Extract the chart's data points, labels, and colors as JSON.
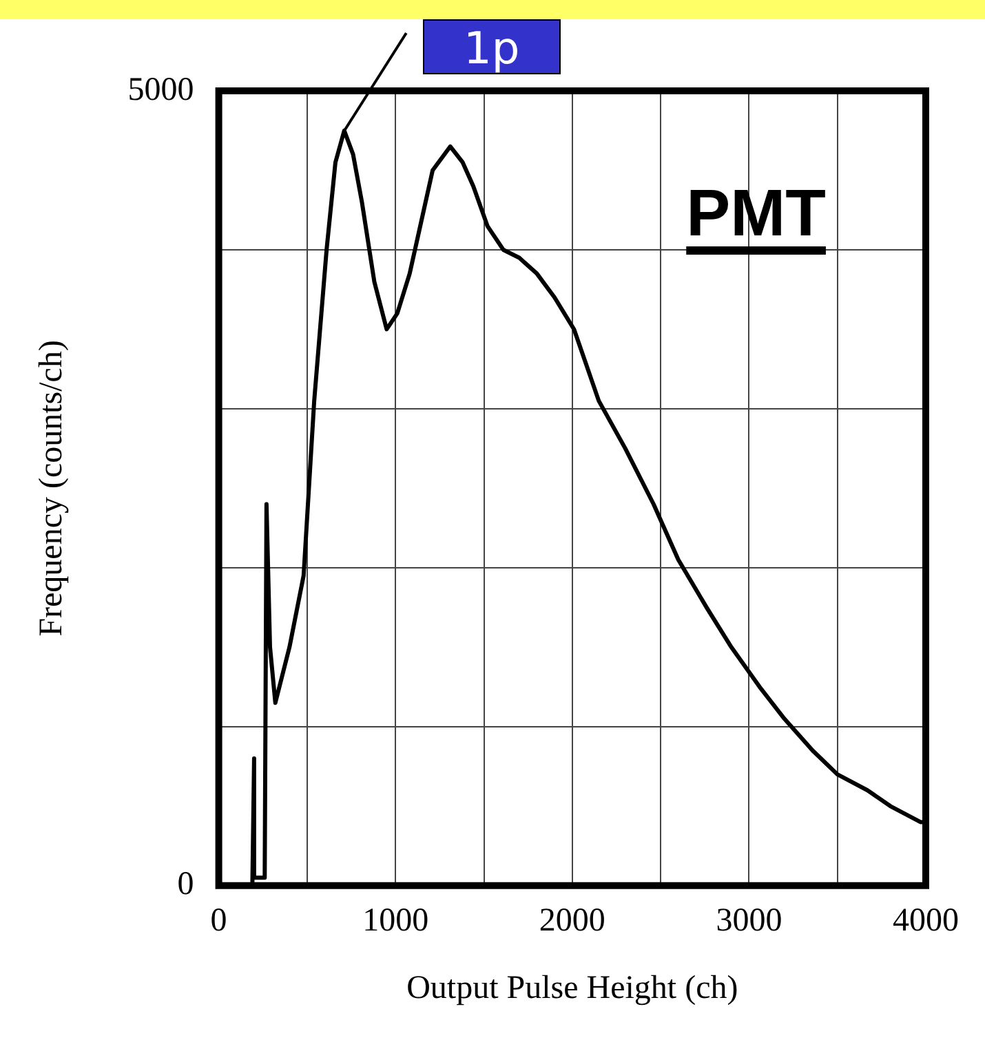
{
  "chart_data": {
    "type": "line",
    "xlabel": "Output Pulse Height (ch)",
    "ylabel": "Frequency (counts/ch)",
    "xlim": [
      0,
      4000
    ],
    "ylim": [
      0,
      5000
    ],
    "xticks": [
      0,
      {
        "value": 500,
        "label": null
      },
      1000,
      {
        "value": 1500,
        "label": null
      },
      2000,
      {
        "value": 2500,
        "label": null
      },
      3000,
      {
        "value": 3500,
        "label": null
      },
      4000
    ],
    "yticks": [
      0,
      {
        "value": 1000,
        "label": null
      },
      {
        "value": 2000,
        "label": null
      },
      {
        "value": 3000,
        "label": null
      },
      {
        "value": 4000,
        "label": null
      },
      5000
    ],
    "grid": true,
    "legend": false,
    "marker": "none",
    "line_style": "solid",
    "series": [
      {
        "color": "#000000",
        "x": [
          190,
          200,
          200,
          260,
          270,
          290,
          320,
          400,
          480,
          540,
          610,
          660,
          710,
          760,
          810,
          880,
          950,
          1010,
          1080,
          1150,
          1210,
          1310,
          1380,
          1440,
          1520,
          1610,
          1700,
          1800,
          1900,
          2010,
          2150,
          2300,
          2460,
          2600,
          2760,
          2900,
          3060,
          3200,
          3360,
          3500,
          3670,
          3800,
          3970,
          4000
        ],
        "values": [
          0,
          800,
          50,
          50,
          2400,
          1500,
          1150,
          1500,
          1950,
          3050,
          4000,
          4550,
          4750,
          4600,
          4300,
          3800,
          3500,
          3600,
          3850,
          4200,
          4500,
          4650,
          4550,
          4400,
          4150,
          4000,
          3950,
          3850,
          3700,
          3500,
          3050,
          2750,
          2400,
          2050,
          1750,
          1500,
          1250,
          1050,
          850,
          700,
          600,
          500,
          400,
          400
        ]
      }
    ],
    "annotations": [
      {
        "text": "1p",
        "x": 710,
        "y": 4750
      },
      "PMT"
    ]
  }
}
